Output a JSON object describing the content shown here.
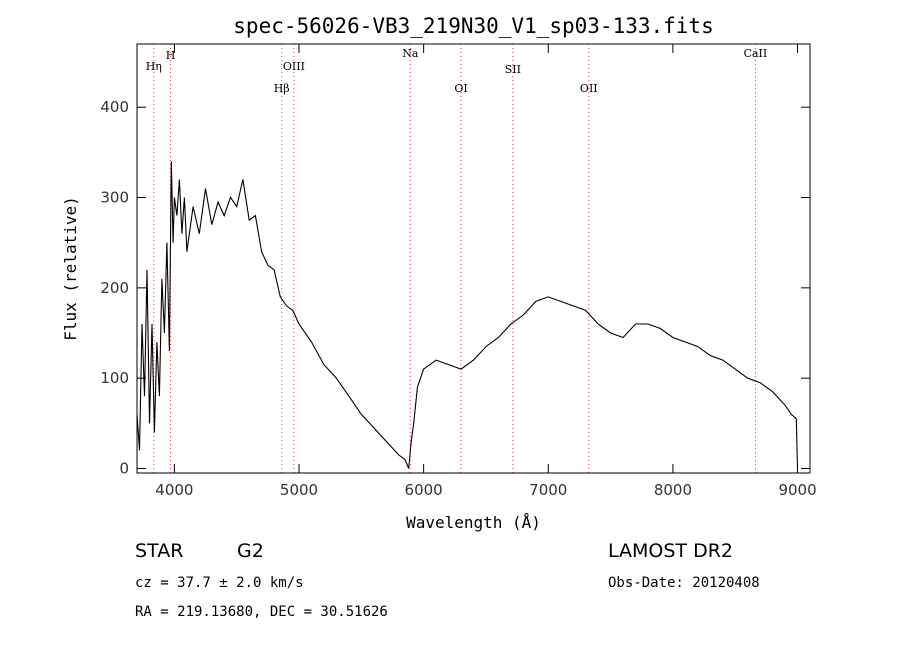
{
  "chart_data": {
    "type": "line",
    "title": "spec-56026-VB3_219N30_V1_sp03-133.fits",
    "xlabel": "Wavelength (Å)",
    "ylabel": "Flux (relative)",
    "xlim": [
      3700,
      9100
    ],
    "ylim": [
      -5,
      470
    ],
    "x_ticks": [
      4000,
      5000,
      6000,
      7000,
      8000,
      9000
    ],
    "y_ticks": [
      0,
      100,
      200,
      300,
      400
    ],
    "grid": false,
    "spectral_lines": [
      {
        "name": "Hη",
        "wavelength": 3835
      },
      {
        "name": "H",
        "wavelength": 3969
      },
      {
        "name": "Hβ",
        "wavelength": 4861
      },
      {
        "name": "OIII",
        "wavelength": 4959
      },
      {
        "name": "Na",
        "wavelength": 5893
      },
      {
        "name": "OI",
        "wavelength": 6300
      },
      {
        "name": "SII",
        "wavelength": 6716
      },
      {
        "name": "OII",
        "wavelength": 7325
      },
      {
        "name": "CaII",
        "wavelength": 8662
      }
    ],
    "series": [
      {
        "color": "#000000",
        "x": [
          3700,
          3720,
          3740,
          3760,
          3780,
          3800,
          3820,
          3840,
          3860,
          3880,
          3900,
          3920,
          3940,
          3960,
          3975,
          3990,
          4000,
          4020,
          4040,
          4060,
          4080,
          4100,
          4150,
          4200,
          4250,
          4300,
          4350,
          4400,
          4450,
          4500,
          4550,
          4600,
          4650,
          4700,
          4750,
          4800,
          4850,
          4900,
          4950,
          5000,
          5100,
          5200,
          5300,
          5400,
          5500,
          5600,
          5700,
          5800,
          5850,
          5880,
          5900,
          5920,
          5950,
          6000,
          6050,
          6100,
          6200,
          6300,
          6400,
          6500,
          6600,
          6700,
          6800,
          6900,
          7000,
          7100,
          7200,
          7300,
          7400,
          7500,
          7600,
          7700,
          7800,
          7900,
          8000,
          8100,
          8200,
          8300,
          8400,
          8500,
          8600,
          8700,
          8800,
          8900,
          8950,
          8990,
          9000
        ],
        "y": [
          60,
          20,
          160,
          80,
          220,
          50,
          160,
          40,
          140,
          80,
          210,
          150,
          250,
          130,
          340,
          250,
          300,
          280,
          320,
          260,
          300,
          240,
          290,
          260,
          310,
          270,
          295,
          280,
          300,
          290,
          320,
          275,
          280,
          240,
          225,
          220,
          190,
          180,
          175,
          160,
          140,
          115,
          100,
          80,
          60,
          45,
          30,
          15,
          10,
          0,
          30,
          50,
          90,
          110,
          115,
          120,
          115,
          110,
          120,
          135,
          145,
          160,
          170,
          185,
          190,
          185,
          180,
          175,
          160,
          150,
          145,
          160,
          160,
          155,
          145,
          140,
          135,
          125,
          120,
          110,
          100,
          95,
          85,
          70,
          60,
          55,
          0
        ]
      }
    ]
  },
  "info": {
    "object_class": "STAR",
    "subclass": "G2",
    "survey": "LAMOST DR2",
    "cz": "cz = 37.7 ± 2.0 km/s",
    "obs_date": "Obs-Date: 20120408",
    "coords": "RA = 219.13680, DEC =  30.51626"
  }
}
